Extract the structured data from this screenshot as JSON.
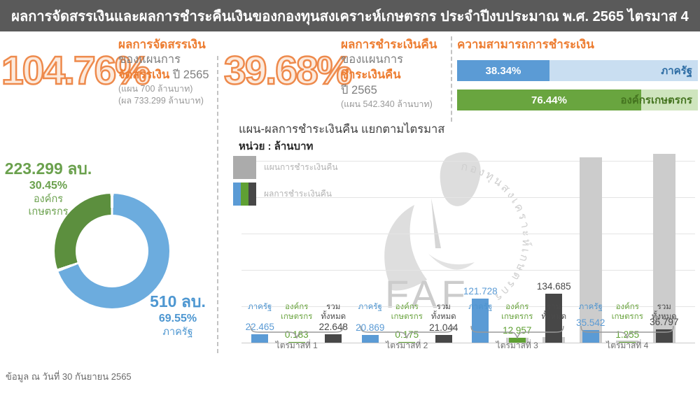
{
  "title_bar": "ผลการจัดสรรเงินและผลการชำระคืนเงินของกองทุนสงเคราะห์เกษตรกร ประจำปีงบประมาณ พ.ศ. 2565 ไตรมาส 4",
  "allocation": {
    "percent": "104.76%",
    "heading": "ผลการจัดสรรเงิน",
    "line1": "ของแผนการ",
    "line2_highlight": "จัดสรรเงิน",
    "line2_rest": " ปี 2565",
    "plan_note": "(แผน 700 ล้านบาท)",
    "result_note": "(ผล 733.299 ล้านบาท)"
  },
  "repayment": {
    "percent": "39.68%",
    "heading": "ผลการชำระเงินคืน",
    "line1": "ของแผนการ",
    "line2_highlight": "ชำระเงินคืน",
    "line3": "ปี 2565",
    "plan_note": "(แผน 542.340 ล้านบาท)"
  },
  "ability": {
    "heading": "ความสามารถการชำระเงิน",
    "bars": [
      {
        "label": "ภาครัฐ",
        "percent": 38.34,
        "percent_label": "38.34%",
        "fill": "#5b9bd5",
        "bg": "#c9def1",
        "label_color": "#2e6da4"
      },
      {
        "label": "องค์กรเกษตรกร",
        "percent": 76.44,
        "percent_label": "76.44%",
        "fill": "#69a53f",
        "bg": "#cfe5be",
        "label_color": "#44731f"
      }
    ]
  },
  "footer_note": "ข้อมูล ณ วันที่ 30 กันยายน 2565",
  "watermark": {
    "text": "FAF",
    "circular_text": "กองทุนสงเคราะห์เกษตรกร"
  },
  "chart_data": [
    {
      "type": "pie",
      "donut": true,
      "slices": [
        {
          "label": "ภาครัฐ",
          "percent": 69.55,
          "percent_label": "69.55%",
          "amount_label": "510 ลบ.",
          "color": "#6cacde"
        },
        {
          "label": "องค์กรเกษตรกร",
          "label_lines": [
            "องค์กร",
            "เกษตรกร"
          ],
          "percent": 30.45,
          "percent_label": "30.45%",
          "amount_label": "223.299 ลบ.",
          "color": "#5c8f3e"
        }
      ],
      "start_angle": "top, clockwise, ภาครัฐ first",
      "gap_color": "#ffffff"
    },
    {
      "type": "bar",
      "title": "แผน-ผลการชำระเงินคืน แยกตามไตรมาส",
      "unit": "หน่วย : ล้านบาท",
      "categories": [
        "ภาครัฐ",
        "องค์กรเกษตรกร",
        "รวมทั้งหมด"
      ],
      "category_lines": [
        [
          "ภาครัฐ"
        ],
        [
          "องค์กร",
          "เกษตรกร"
        ],
        [
          "รวม",
          "ทั้งหมด"
        ]
      ],
      "category_colors": [
        "#4e94cf",
        "#6ba440",
        "#4a4a4a"
      ],
      "bar_colors": [
        "#5b9bd5",
        "#5fa033",
        "#474747"
      ],
      "plan_color": "#cccccc",
      "quarters": [
        "ไตรมาสที่ 1",
        "ไตรมาสที่ 2",
        "ไตรมาสที่ 3",
        "ไตรมาสที่ 4"
      ],
      "series": [
        {
          "name": "แผนการชำระเงินคืน",
          "role": "plan",
          "estimated": true,
          "values": [
            [
              0,
              0,
              0
            ],
            [
              0,
              0,
              0
            ],
            [
              0,
              13,
              16
            ],
            [
              510,
              5,
              520
            ]
          ]
        },
        {
          "name": "ผลการชำระเงินคืน",
          "role": "actual",
          "values": [
            [
              22.465,
              0.183,
              22.648
            ],
            [
              20.869,
              0.175,
              21.044
            ],
            [
              121.728,
              12.957,
              134.685
            ],
            [
              35.542,
              1.255,
              36.797
            ]
          ]
        }
      ],
      "value_labels": [
        [
          "22.465",
          "0.183",
          "22.648"
        ],
        [
          "20.869",
          "0.175",
          "21.044"
        ],
        [
          "121.728",
          "12.957",
          "134.685"
        ],
        [
          "35.542",
          "1.255",
          "36.797"
        ]
      ],
      "ylim": [
        0,
        540
      ],
      "gridline_step": 100,
      "grid": true,
      "legend_position": "top-left"
    }
  ]
}
